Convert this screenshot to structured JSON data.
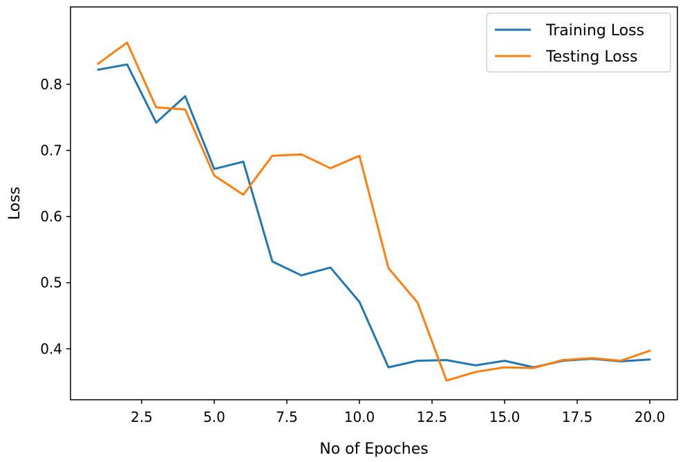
{
  "chart_data": {
    "type": "line",
    "title": "",
    "xlabel": "No of Epoches",
    "ylabel": "Loss",
    "xlim": [
      0.05,
      20.95
    ],
    "ylim": [
      0.323,
      0.917
    ],
    "xticks": [
      2.5,
      5.0,
      7.5,
      10.0,
      12.5,
      15.0,
      17.5,
      20.0
    ],
    "xtick_labels": [
      "2.5",
      "5.0",
      "7.5",
      "10.0",
      "12.5",
      "15.0",
      "17.5",
      "20.0"
    ],
    "yticks": [
      0.4,
      0.5,
      0.6,
      0.7,
      0.8
    ],
    "ytick_labels": [
      "0.4",
      "0.5",
      "0.6",
      "0.7",
      "0.8"
    ],
    "legend_position": "top-right",
    "x": [
      1,
      2,
      3,
      4,
      5,
      6,
      7,
      8,
      9,
      10,
      11,
      12,
      13,
      14,
      15,
      16,
      17,
      18,
      19,
      20
    ],
    "series": [
      {
        "name": "Training Loss",
        "color": "#1f77b4",
        "values": [
          0.822,
          0.83,
          0.742,
          0.782,
          0.672,
          0.683,
          0.532,
          0.511,
          0.523,
          0.471,
          0.372,
          0.382,
          0.383,
          0.375,
          0.382,
          0.372,
          0.382,
          0.385,
          0.381,
          0.384
        ]
      },
      {
        "name": "Testing Loss",
        "color": "#ff7f0e",
        "values": [
          0.831,
          0.863,
          0.765,
          0.762,
          0.662,
          0.633,
          0.692,
          0.694,
          0.673,
          0.692,
          0.522,
          0.47,
          0.352,
          0.365,
          0.372,
          0.371,
          0.383,
          0.386,
          0.382,
          0.397
        ]
      }
    ]
  }
}
